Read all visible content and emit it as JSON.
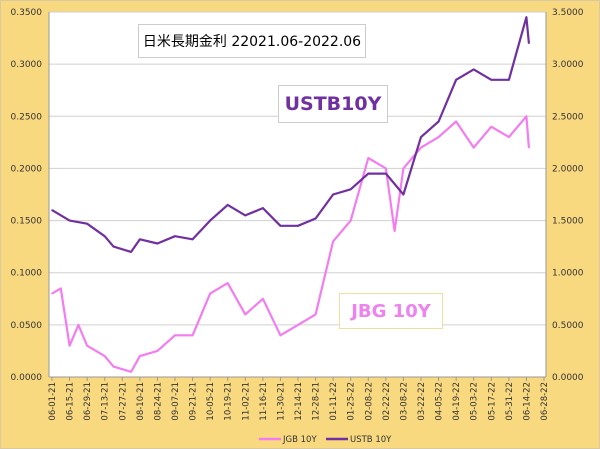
{
  "chart_data": {
    "type": "line",
    "title": "日米長期金利 22021.06-2022.06",
    "annotations": [
      "USTB10Y",
      "JBG 10Y"
    ],
    "y_left": {
      "range": [
        0,
        0.35
      ],
      "ticks": [
        "0.0000",
        "0.0500",
        "0.1000",
        "0.1500",
        "0.2000",
        "0.2500",
        "0.3000",
        "0.3500"
      ]
    },
    "y_right": {
      "range": [
        0,
        3.5
      ],
      "ticks": [
        "0.0000",
        "0.5000",
        "1.0000",
        "1.5000",
        "2.0000",
        "2.5000",
        "3.0000",
        "3.5000"
      ]
    },
    "x_ticks": [
      "06-01-21",
      "06-15-21",
      "06-29-21",
      "07-13-21",
      "07-27-21",
      "08-10-21",
      "08-24-21",
      "09-07-21",
      "09-21-21",
      "10-05-21",
      "10-19-21",
      "11-02-21",
      "11-16-21",
      "11-30-21",
      "12-14-21",
      "12-28-21",
      "01-11-22",
      "01-25-22",
      "02-08-22",
      "02-22-22",
      "03-08-22",
      "03-22-22",
      "04-05-22",
      "04-19-22",
      "05-03-22",
      "05-17-22",
      "05-31-22",
      "06-14-22",
      "06-28-22"
    ],
    "grid": true,
    "legend": "bottom",
    "series": [
      {
        "name": "JGB 10Y",
        "axis": "left",
        "color": "#F47CF0",
        "x": [
          "2021-06-01",
          "2021-06-08",
          "2021-06-15",
          "2021-06-22",
          "2021-06-29",
          "2021-07-13",
          "2021-07-20",
          "2021-08-03",
          "2021-08-10",
          "2021-08-24",
          "2021-09-07",
          "2021-09-21",
          "2021-10-05",
          "2021-10-19",
          "2021-11-02",
          "2021-11-16",
          "2021-11-30",
          "2021-12-14",
          "2021-12-28",
          "2022-01-11",
          "2022-01-25",
          "2022-02-08",
          "2022-02-22",
          "2022-03-01",
          "2022-03-08",
          "2022-03-22",
          "2022-04-05",
          "2022-04-19",
          "2022-05-03",
          "2022-05-17",
          "2022-05-31",
          "2022-06-14",
          "2022-06-16"
        ],
        "values": [
          0.08,
          0.085,
          0.03,
          0.05,
          0.03,
          0.02,
          0.01,
          0.005,
          0.02,
          0.025,
          0.04,
          0.04,
          0.08,
          0.09,
          0.06,
          0.075,
          0.04,
          0.05,
          0.06,
          0.13,
          0.15,
          0.21,
          0.2,
          0.14,
          0.2,
          0.22,
          0.23,
          0.245,
          0.22,
          0.24,
          0.23,
          0.25,
          0.22
        ]
      },
      {
        "name": "USTB 10Y",
        "axis": "right",
        "color": "#7030A0",
        "x": [
          "2021-06-01",
          "2021-06-15",
          "2021-06-29",
          "2021-07-13",
          "2021-07-20",
          "2021-08-03",
          "2021-08-10",
          "2021-08-24",
          "2021-09-07",
          "2021-09-21",
          "2021-10-05",
          "2021-10-19",
          "2021-11-02",
          "2021-11-16",
          "2021-11-30",
          "2021-12-14",
          "2021-12-28",
          "2022-01-11",
          "2022-01-25",
          "2022-02-08",
          "2022-02-22",
          "2022-03-08",
          "2022-03-22",
          "2022-04-05",
          "2022-04-19",
          "2022-05-03",
          "2022-05-17",
          "2022-05-31",
          "2022-06-14",
          "2022-06-16"
        ],
        "values": [
          1.6,
          1.5,
          1.47,
          1.35,
          1.25,
          1.2,
          1.32,
          1.28,
          1.35,
          1.32,
          1.5,
          1.65,
          1.55,
          1.62,
          1.45,
          1.45,
          1.52,
          1.75,
          1.8,
          1.95,
          1.95,
          1.75,
          2.3,
          2.45,
          2.85,
          2.95,
          2.85,
          2.85,
          3.45,
          3.2
        ]
      }
    ]
  }
}
